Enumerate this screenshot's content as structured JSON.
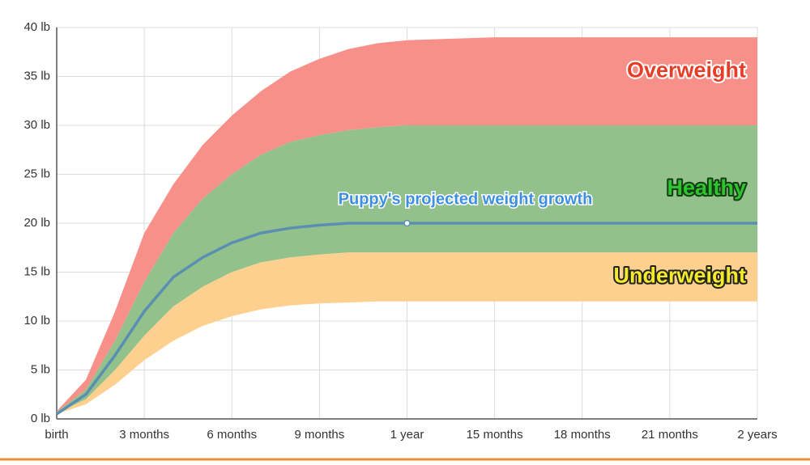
{
  "chart_data": {
    "type": "area",
    "x": [
      0,
      1,
      2,
      3,
      4,
      5,
      6,
      7,
      8,
      9,
      10,
      11,
      12,
      15,
      18,
      21,
      24
    ],
    "xlim": [
      0,
      24
    ],
    "xticks": [
      {
        "value": 0,
        "label": "birth"
      },
      {
        "value": 3,
        "label": "3 months"
      },
      {
        "value": 6,
        "label": "6 months"
      },
      {
        "value": 9,
        "label": "9 months"
      },
      {
        "value": 12,
        "label": "1 year"
      },
      {
        "value": 15,
        "label": "15 months"
      },
      {
        "value": 18,
        "label": "18 months"
      },
      {
        "value": 21,
        "label": "21 months"
      },
      {
        "value": 24,
        "label": "2 years"
      }
    ],
    "ylim": [
      0,
      40
    ],
    "yticks": [
      {
        "value": 0,
        "label": "0 lb"
      },
      {
        "value": 5,
        "label": "5 lb"
      },
      {
        "value": 10,
        "label": "10 lb"
      },
      {
        "value": 15,
        "label": "15 lb"
      },
      {
        "value": 20,
        "label": "20 lb"
      },
      {
        "value": 25,
        "label": "25 lb"
      },
      {
        "value": 30,
        "label": "30 lb"
      },
      {
        "value": 35,
        "label": "35 lb"
      },
      {
        "value": 40,
        "label": "40 lb"
      }
    ],
    "grid": true,
    "bands": [
      {
        "name": "Overweight",
        "color": "#f8908a",
        "label_color": "#e63d28",
        "lower": [
          0.7,
          3,
          8,
          14,
          19,
          22.5,
          25,
          27,
          28.3,
          29,
          29.5,
          29.8,
          30,
          30,
          30,
          30,
          30
        ],
        "upper": [
          0.8,
          4,
          11,
          19,
          24,
          28,
          31,
          33.5,
          35.5,
          36.8,
          37.8,
          38.4,
          38.7,
          39,
          39,
          39,
          39
        ]
      },
      {
        "name": "Healthy",
        "color": "#92c18c",
        "label_color": "#2ec42e",
        "lower": [
          0.6,
          2,
          5,
          8.5,
          11.5,
          13.5,
          15,
          16,
          16.5,
          16.8,
          17,
          17,
          17,
          17,
          17,
          17,
          17
        ],
        "upper": [
          0.7,
          3,
          8,
          14,
          19,
          22.5,
          25,
          27,
          28.3,
          29,
          29.5,
          29.8,
          30,
          30,
          30,
          30,
          30
        ]
      },
      {
        "name": "Underweight",
        "color": "#fdd08f",
        "label_color": "#f5ea2a",
        "lower": [
          0.5,
          1.5,
          3.5,
          6,
          8,
          9.5,
          10.5,
          11.2,
          11.6,
          11.8,
          11.9,
          12,
          12,
          12,
          12,
          12,
          12
        ],
        "upper": [
          0.6,
          2,
          5,
          8.5,
          11.5,
          13.5,
          15,
          16,
          16.5,
          16.8,
          17,
          17,
          17,
          17,
          17,
          17,
          17
        ]
      }
    ],
    "series": [
      {
        "name": "Puppy's projected weight growth",
        "color": "#5a8fb2",
        "values": [
          0.5,
          2.5,
          6.5,
          11,
          14.5,
          16.5,
          18,
          19,
          19.5,
          19.8,
          20,
          20,
          20,
          20,
          20,
          20,
          20
        ]
      }
    ]
  }
}
